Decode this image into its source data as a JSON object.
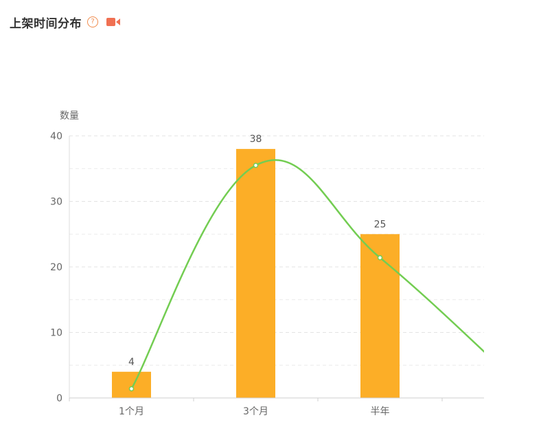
{
  "header": {
    "title": "上架时间分布",
    "help_glyph": "?"
  },
  "icons": {
    "help": "question-circle-icon",
    "video": "video-camera-icon"
  },
  "colors": {
    "accent": "#f08a4b",
    "bar": "#fcae27",
    "line": "#73cd52",
    "grid": "#e3e3e3"
  },
  "chart_data": {
    "type": "bar",
    "title": "",
    "ylabel": "数量",
    "xlabel": "",
    "ylim": [
      0,
      40
    ],
    "yticks": [
      0,
      10,
      20,
      30,
      40
    ],
    "grid": true,
    "categories": [
      "1个月",
      "3个月",
      "半年",
      ""
    ],
    "series": [
      {
        "type": "bar",
        "values": [
          4,
          38,
          25,
          null
        ],
        "labels": [
          "4",
          "38",
          "25",
          ""
        ]
      },
      {
        "type": "line",
        "smooth": true,
        "values": [
          1.4,
          35.5,
          21.4,
          4.2
        ]
      }
    ]
  }
}
